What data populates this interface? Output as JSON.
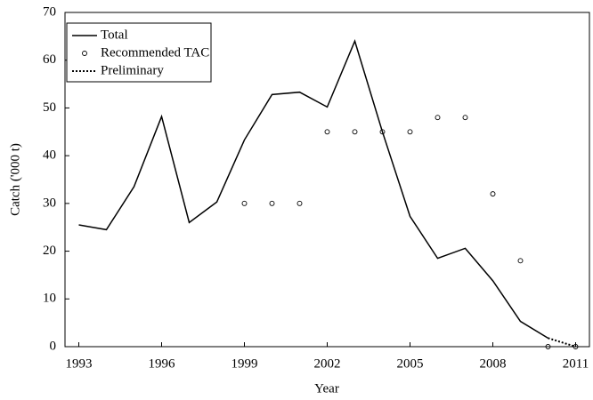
{
  "chart_data": {
    "type": "line",
    "x_label": "Year",
    "y_label": "Catch ('000 t)",
    "x": [
      1993,
      1994,
      1995,
      1996,
      1997,
      1998,
      1999,
      2000,
      2001,
      2002,
      2003,
      2004,
      2005,
      2006,
      2007,
      2008,
      2009,
      2010,
      2011
    ],
    "series": [
      {
        "name": "Total",
        "color": "#000000",
        "style": "solid",
        "values": [
          25.5,
          24.5,
          33.5,
          48.2,
          26,
          30.3,
          43.3,
          52.8,
          53.3,
          50.2,
          64,
          45,
          27.3,
          18.5,
          20.6,
          13.8,
          5.3,
          1.8,
          null
        ]
      },
      {
        "name": "Recommended TAC",
        "color": "#000000",
        "style": "marker",
        "values": [
          null,
          null,
          null,
          null,
          null,
          null,
          30,
          30,
          30,
          45,
          45,
          45,
          45,
          48,
          48,
          32,
          18,
          0,
          0
        ]
      },
      {
        "name": "Preliminary",
        "color": "#000000",
        "style": "dotted",
        "values": [
          null,
          null,
          null,
          null,
          null,
          null,
          null,
          null,
          null,
          null,
          null,
          null,
          null,
          null,
          null,
          null,
          null,
          1.8,
          0
        ]
      }
    ],
    "xlim": [
      1992.5,
      2011.5
    ],
    "xticks": [
      1993,
      1996,
      1999,
      2002,
      2005,
      2008,
      2011
    ],
    "ylim": [
      0,
      70
    ],
    "yticks": [
      0,
      10,
      20,
      30,
      40,
      50,
      60,
      70
    ],
    "grid": false,
    "legend": "upper-left"
  }
}
